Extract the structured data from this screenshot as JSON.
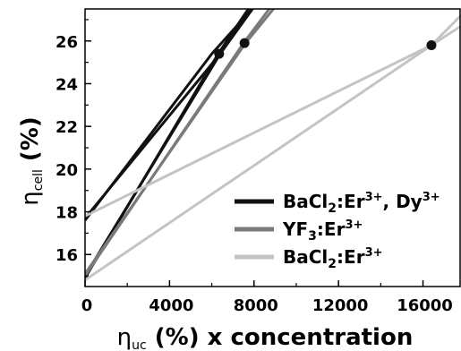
{
  "chart_data": {
    "type": "line",
    "xlabel": {
      "main": "η",
      "sub": "uc",
      "rest": " (%) x concentration"
    },
    "ylabel": {
      "main": "η",
      "sub": "cell",
      "rest": " (%)"
    },
    "xlim": [
      0,
      17800
    ],
    "ylim": [
      14.5,
      27.5
    ],
    "xticks": [
      0,
      4000,
      8000,
      12000,
      16000
    ],
    "yticks": [
      16,
      18,
      20,
      22,
      24,
      26
    ],
    "xtick_labels": [
      "0",
      "4000",
      "8000",
      "12000",
      "16000"
    ],
    "ytick_labels": [
      "16",
      "18",
      "20",
      "22",
      "24",
      "26"
    ],
    "grid": false,
    "legend_position": "lower-right",
    "series": [
      {
        "legend": {
          "base": "BaCl",
          "sub": "2",
          "mid": ":Er",
          "sup": "3+",
          "end": ", Dy",
          "sup2": "3+"
        },
        "color": "#111111",
        "lines": [
          [
            [
              0,
              17.7
            ],
            [
              6400,
              25.4
            ],
            [
              7400,
              27.0
            ]
          ],
          [
            [
              0,
              17.6
            ],
            [
              6000,
              25.4
            ],
            [
              8000,
              27.6
            ]
          ],
          [
            [
              0,
              15.0
            ],
            [
              6400,
              25.4
            ],
            [
              8000,
              27.6
            ]
          ],
          [
            [
              0,
              14.9
            ],
            [
              6300,
              25.4
            ],
            [
              7800,
              27.6
            ]
          ]
        ],
        "markers": [
          [
            6350,
            25.4
          ]
        ]
      },
      {
        "legend": {
          "base": "YF",
          "sub": "3",
          "mid": ":Er",
          "sup": "3+"
        },
        "color": "#7a7a7a",
        "lines": [
          [
            [
              0,
              15.1
            ],
            [
              7600,
              25.9
            ],
            [
              9000,
              27.6
            ]
          ],
          [
            [
              0,
              15.0
            ],
            [
              7500,
              25.9
            ],
            [
              8800,
              27.6
            ]
          ]
        ],
        "markers": [
          [
            7550,
            25.9
          ]
        ]
      },
      {
        "legend": {
          "base": "BaCl",
          "sub": "2",
          "mid": ":Er",
          "sup": "3+"
        },
        "color": "#c4c4c4",
        "lines": [
          [
            [
              0,
              17.8
            ],
            [
              16400,
              25.8
            ],
            [
              17800,
              26.7
            ]
          ],
          [
            [
              0,
              14.8
            ],
            [
              16400,
              25.8
            ],
            [
              17800,
              27.2
            ]
          ]
        ],
        "markers": [
          [
            16400,
            25.8
          ]
        ]
      }
    ]
  }
}
